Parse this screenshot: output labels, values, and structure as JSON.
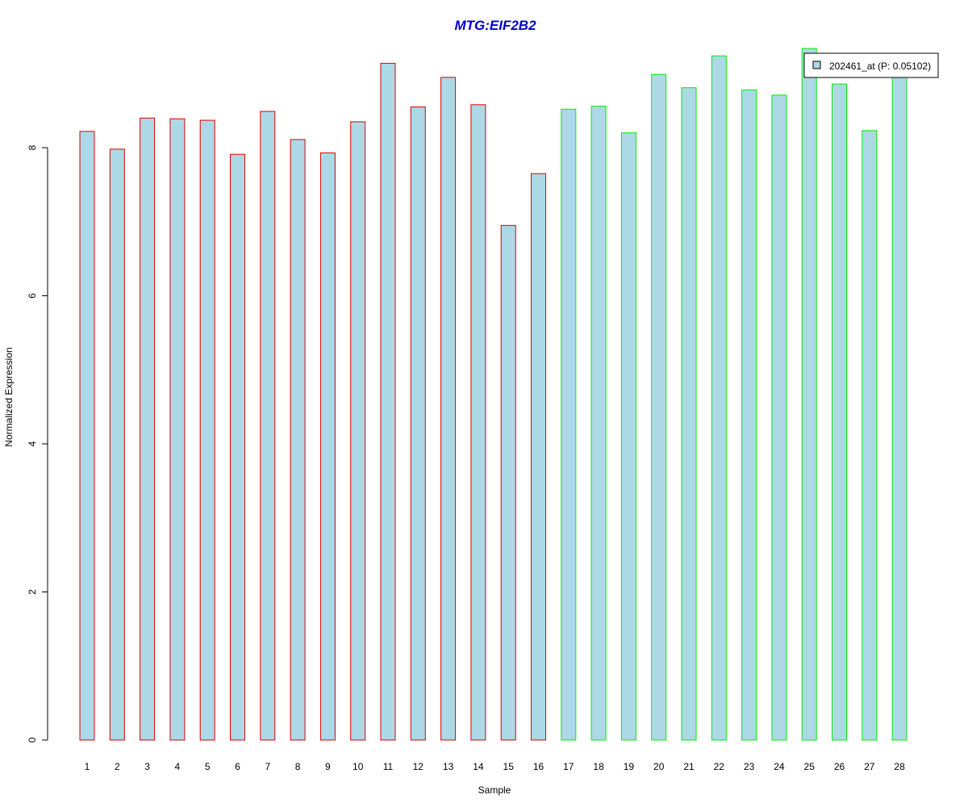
{
  "chart_data": {
    "type": "bar",
    "title": "MTG:EIF2B2",
    "title_color": "#0000CC",
    "xlabel": "Sample",
    "ylabel": "Normalized Expression",
    "categories": [
      "1",
      "2",
      "3",
      "4",
      "5",
      "6",
      "7",
      "8",
      "9",
      "10",
      "11",
      "12",
      "13",
      "14",
      "15",
      "16",
      "17",
      "18",
      "19",
      "20",
      "21",
      "22",
      "23",
      "24",
      "25",
      "26",
      "27",
      "28"
    ],
    "series": [
      {
        "name": "202461_at (P: 0.05102)",
        "values": [
          8.22,
          7.98,
          8.4,
          8.39,
          8.37,
          7.91,
          8.49,
          8.11,
          7.93,
          8.35,
          9.14,
          8.55,
          8.95,
          8.58,
          6.95,
          7.65,
          8.52,
          8.56,
          8.2,
          8.99,
          8.81,
          9.24,
          8.78,
          8.71,
          9.34,
          8.86,
          8.23,
          9.0
        ]
      }
    ],
    "groups": [
      {
        "range": [
          1,
          16
        ],
        "border_color": "#DD0000"
      },
      {
        "range": [
          17,
          28
        ],
        "border_color": "#00EE00"
      }
    ],
    "bar_fill": "#ADD8E6",
    "ylim": [
      0,
      9.34
    ],
    "yticks": [
      0,
      2,
      4,
      6,
      8
    ],
    "grid": false,
    "legend_position": "top-right"
  }
}
